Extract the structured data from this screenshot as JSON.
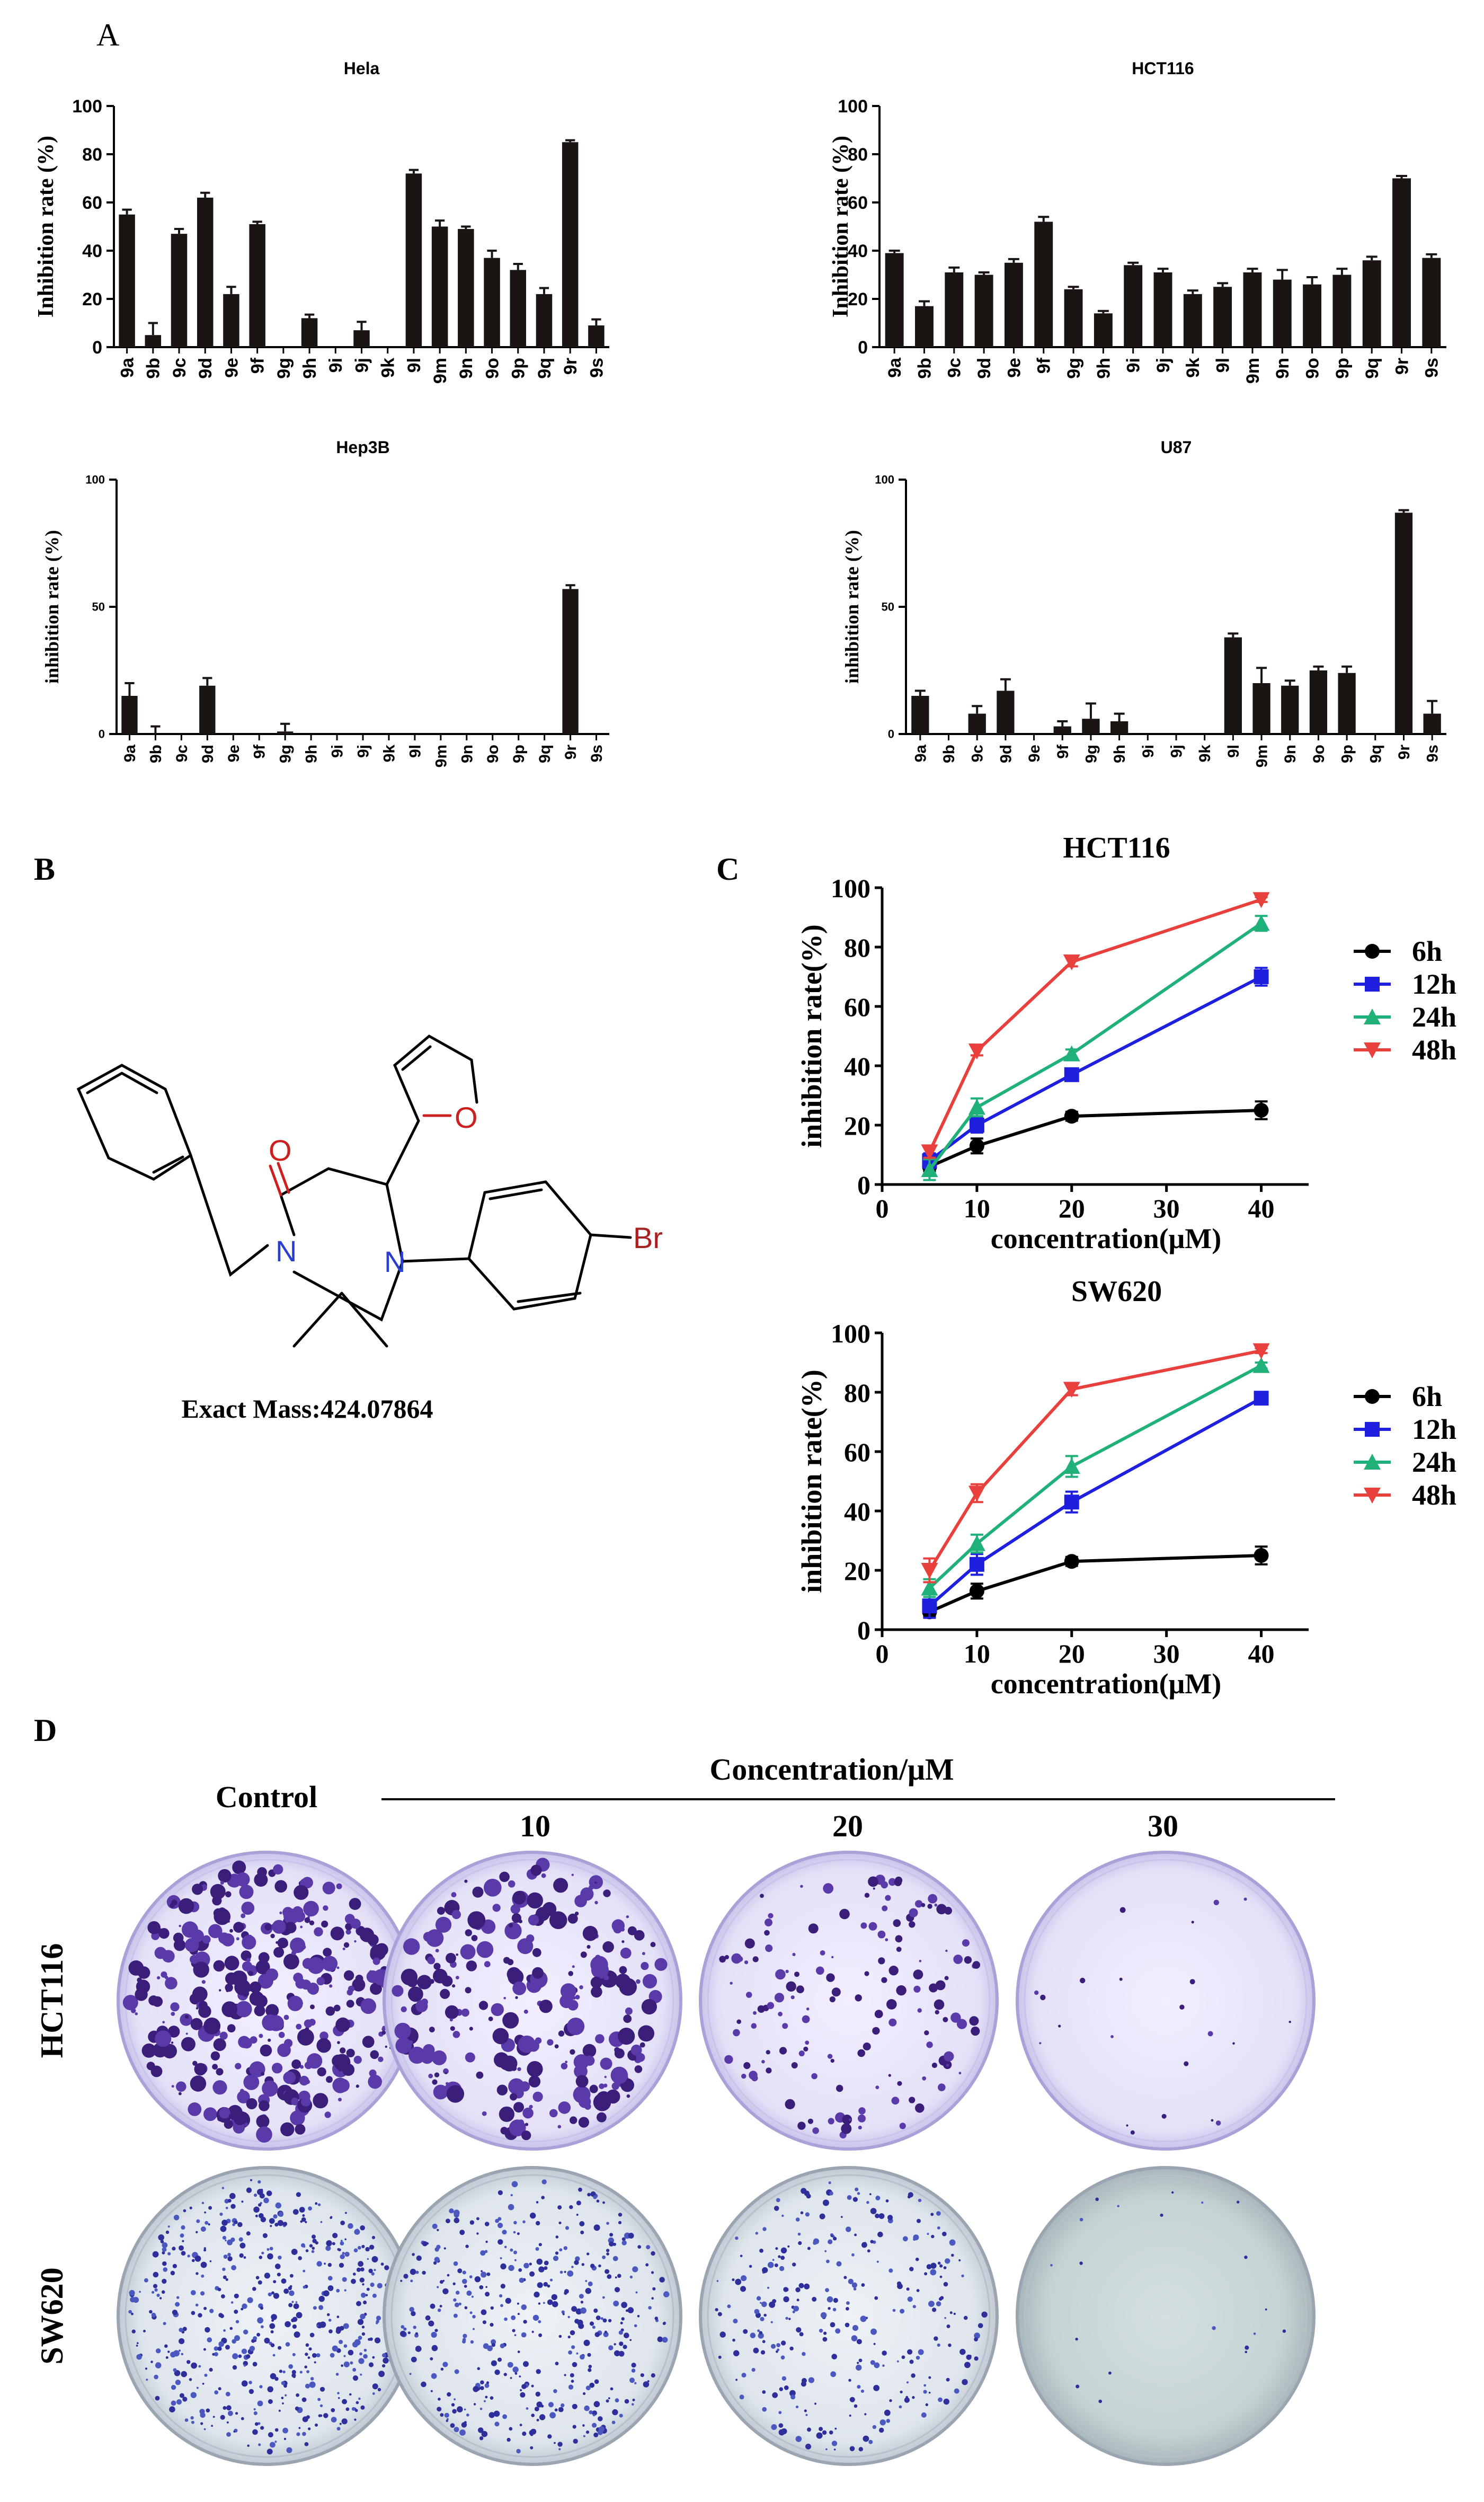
{
  "panel_labels": {
    "a": "A",
    "b": "B",
    "c": "C",
    "d": "D"
  },
  "chart_data": [
    {
      "type": "bar",
      "panel": "A",
      "title": "Hela",
      "xlabel": "",
      "ylabel": "Inhibition rate (%)",
      "ylim": [
        0,
        100
      ],
      "yticks": [
        0,
        20,
        40,
        60,
        80,
        100
      ],
      "categories": [
        "9a",
        "9b",
        "9c",
        "9d",
        "9e",
        "9f",
        "9g",
        "9h",
        "9i",
        "9j",
        "9k",
        "9l",
        "9m",
        "9n",
        "9o",
        "9p",
        "9q",
        "9r",
        "9s"
      ],
      "values": [
        55,
        5,
        47,
        62,
        22,
        51,
        0,
        12,
        0,
        7,
        0,
        72,
        50,
        49,
        37,
        32,
        22,
        85,
        9
      ],
      "errors": [
        2,
        5,
        2,
        2,
        3,
        1,
        0,
        1.5,
        0,
        3.5,
        0,
        1.5,
        2.5,
        1,
        3,
        2.5,
        2.5,
        0.8,
        2.5
      ]
    },
    {
      "type": "bar",
      "panel": "A",
      "title": "HCT116",
      "xlabel": "",
      "ylabel": "Inhibition rate (%)",
      "ylim": [
        0,
        100
      ],
      "yticks": [
        0,
        20,
        40,
        60,
        80,
        100
      ],
      "categories": [
        "9a",
        "9b",
        "9c",
        "9d",
        "9e",
        "9f",
        "9g",
        "9h",
        "9i",
        "9j",
        "9k",
        "9l",
        "9m",
        "9n",
        "9o",
        "9p",
        "9q",
        "9r",
        "9s"
      ],
      "values": [
        39,
        17,
        31,
        30,
        35,
        52,
        24,
        14,
        34,
        31,
        22,
        25,
        31,
        28,
        26,
        30,
        36,
        70,
        37
      ],
      "errors": [
        1,
        2,
        2,
        1,
        1.5,
        2,
        1,
        1,
        1,
        1.5,
        1.5,
        1.5,
        1.5,
        4,
        3,
        2.5,
        1.5,
        1,
        1.5
      ]
    },
    {
      "type": "bar",
      "panel": "A",
      "title": "Hep3B",
      "xlabel": "",
      "ylabel": "inhibition rate (%)",
      "ylim": [
        0,
        100
      ],
      "yticks": [
        0,
        50,
        100
      ],
      "categories": [
        "9a",
        "9b",
        "9c",
        "9d",
        "9e",
        "9f",
        "9g",
        "9h",
        "9i",
        "9j",
        "9k",
        "9l",
        "9m",
        "9n",
        "9o",
        "9p",
        "9q",
        "9r",
        "9s"
      ],
      "values": [
        15,
        0,
        0,
        19,
        0,
        0,
        1,
        0,
        0,
        0,
        0,
        0,
        0,
        0,
        0,
        0,
        0,
        57,
        0
      ],
      "errors": [
        5,
        3,
        0,
        3,
        0,
        0,
        3,
        0,
        0,
        0,
        0,
        0,
        0,
        0,
        0,
        0,
        0,
        1.5,
        0
      ]
    },
    {
      "type": "bar",
      "panel": "A",
      "title": "U87",
      "xlabel": "",
      "ylabel": "inhibition rate (%)",
      "ylim": [
        0,
        100
      ],
      "yticks": [
        0,
        50,
        100
      ],
      "categories": [
        "9a",
        "9b",
        "9c",
        "9d",
        "9e",
        "9f",
        "9g",
        "9h",
        "9i",
        "9j",
        "9k",
        "9l",
        "9m",
        "9n",
        "9o",
        "9p",
        "9q",
        "9r",
        "9s"
      ],
      "values": [
        15,
        0,
        8,
        17,
        0,
        3,
        6,
        5,
        0,
        0,
        0,
        38,
        20,
        19,
        25,
        24,
        0,
        87,
        8
      ],
      "errors": [
        2,
        0,
        3,
        4.5,
        0,
        2,
        6,
        3,
        0,
        0,
        0,
        1.5,
        6,
        2,
        1.5,
        2.5,
        0,
        1,
        5
      ]
    },
    {
      "type": "line",
      "panel": "C",
      "title": "HCT116",
      "xlabel": "concentration(μM)",
      "ylabel": "inhibition rate(%)",
      "xlim": [
        0,
        45
      ],
      "ylim": [
        0,
        100
      ],
      "xticks": [
        0,
        10,
        20,
        30,
        40
      ],
      "yticks": [
        0,
        20,
        40,
        60,
        80,
        100
      ],
      "x": [
        5,
        10,
        20,
        40
      ],
      "series": [
        {
          "name": "6h",
          "color": "#000000",
          "marker": "circle",
          "values": [
            6,
            13,
            23,
            25
          ],
          "errors": [
            1.5,
            2.5,
            1.5,
            3
          ]
        },
        {
          "name": "12h",
          "color": "#1f1fe0",
          "marker": "square",
          "values": [
            8,
            20,
            37,
            70
          ],
          "errors": [
            2.5,
            2.5,
            1.5,
            3
          ]
        },
        {
          "name": "24h",
          "color": "#20b07a",
          "marker": "triangle-up",
          "values": [
            5,
            26,
            44,
            88
          ],
          "errors": [
            3.5,
            3,
            1.5,
            2.5
          ]
        },
        {
          "name": "48h",
          "color": "#e8403c",
          "marker": "triangle-down",
          "values": [
            11,
            45,
            75,
            96
          ],
          "errors": [
            2,
            1.5,
            1.5,
            0.8
          ]
        }
      ]
    },
    {
      "type": "line",
      "panel": "C",
      "title": "SW620",
      "xlabel": "concentration(μM)",
      "ylabel": "inhibition rate(%)",
      "xlim": [
        0,
        45
      ],
      "ylim": [
        0,
        100
      ],
      "xticks": [
        0,
        10,
        20,
        30,
        40
      ],
      "yticks": [
        0,
        20,
        40,
        60,
        80,
        100
      ],
      "x": [
        5,
        10,
        20,
        40
      ],
      "series": [
        {
          "name": "6h",
          "color": "#000000",
          "marker": "circle",
          "values": [
            6,
            13,
            23,
            25
          ],
          "errors": [
            1.5,
            2.5,
            1.5,
            3
          ]
        },
        {
          "name": "12h",
          "color": "#1f1fe0",
          "marker": "square",
          "values": [
            8,
            22,
            43,
            78
          ],
          "errors": [
            4,
            3.5,
            3.5,
            2
          ]
        },
        {
          "name": "24h",
          "color": "#20b07a",
          "marker": "triangle-up",
          "values": [
            14,
            29,
            55,
            89
          ],
          "errors": [
            3,
            3,
            3.5,
            1
          ]
        },
        {
          "name": "48h",
          "color": "#e8403c",
          "marker": "triangle-down",
          "values": [
            20,
            46,
            81,
            94
          ],
          "errors": [
            4,
            3,
            2,
            0.8
          ]
        }
      ]
    }
  ],
  "structure": {
    "exact_mass_label": "Exact Mass:424.07864",
    "atoms": {
      "carbonyl_o": "O",
      "furan_o": "O",
      "n1": "N",
      "n2": "N",
      "br": "Br"
    }
  },
  "colony": {
    "control_label": "Control",
    "header": "Concentration/μM",
    "concentrations": [
      "10",
      "20",
      "30"
    ],
    "rows": [
      "HCT116",
      "SW620"
    ]
  }
}
